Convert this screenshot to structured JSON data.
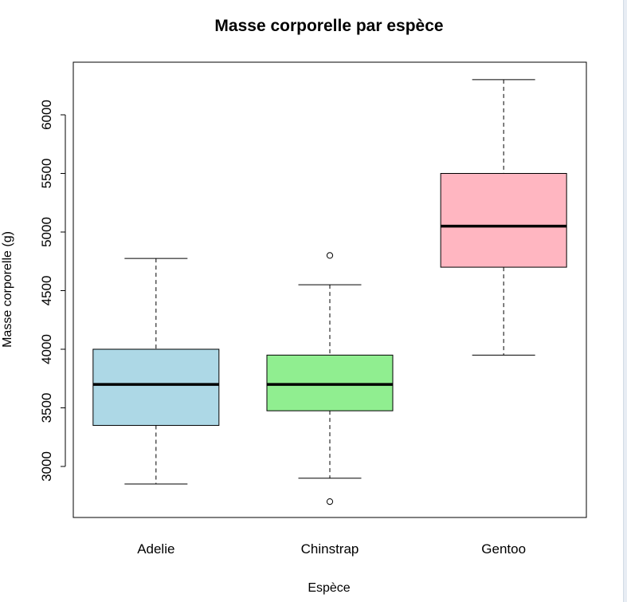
{
  "chart_data": {
    "type": "boxplot",
    "title": "Masse corporelle par espèce",
    "xlabel": "Espèce",
    "ylabel": "Masse corporelle (g)",
    "ylim": [
      2700,
      6400
    ],
    "yticks": [
      3000,
      3500,
      4000,
      4500,
      5000,
      5500,
      6000
    ],
    "yticks_labels": [
      "3000",
      "3500",
      "4000",
      "4500",
      "5000",
      "5500",
      "6000"
    ],
    "grid": false,
    "categories": [
      "Adelie",
      "Chinstrap",
      "Gentoo"
    ],
    "boxes": [
      {
        "category": "Adelie",
        "whisker_low": 2850,
        "q1": 3350,
        "median": 3700,
        "q3": 4000,
        "whisker_high": 4775,
        "outliers": [],
        "color": "#add8e6"
      },
      {
        "category": "Chinstrap",
        "whisker_low": 2900,
        "q1": 3475,
        "median": 3700,
        "q3": 3950,
        "whisker_high": 4550,
        "outliers": [
          2700,
          4800
        ],
        "color": "#90ee90"
      },
      {
        "category": "Gentoo",
        "whisker_low": 3950,
        "q1": 4700,
        "median": 5050,
        "q3": 5500,
        "whisker_high": 6300,
        "outliers": [],
        "color": "#ffb6c1"
      }
    ]
  }
}
